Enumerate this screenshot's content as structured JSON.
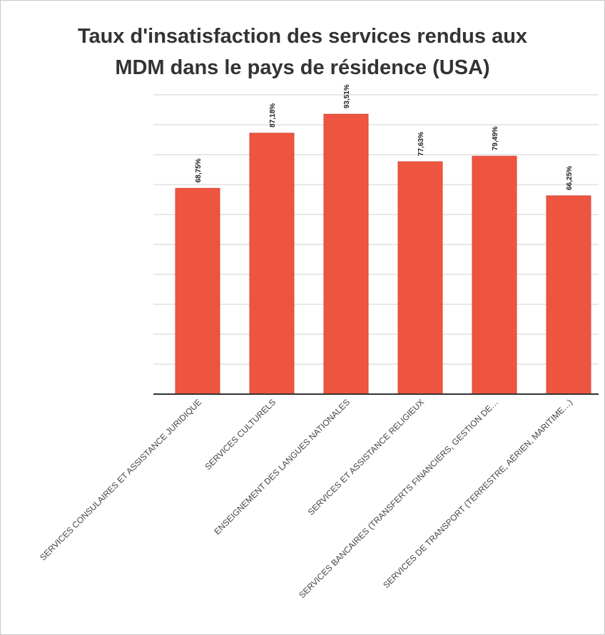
{
  "chart_data": {
    "type": "bar",
    "title": "Taux d'insatisfaction des services rendus aux MDM dans le pays de résidence (USA)",
    "categories": [
      "SERVICES CONSULAIRES ET ASSISTANCE JURIDIQUE",
      "SERVICES CULTURELS",
      "ENSEIGNEMENT DES LANGUES NATIONALES",
      "SERVICES ET ASSISTANCE RELIGIEUX",
      "SERVICES BANCAIRES (TRANSFERTS FINANCIERS, GESTION DE…",
      "SERVICES DE TRANSPORT (TERRESTRE, AÉRIEN, MARITIME…)"
    ],
    "values": [
      68.75,
      87.18,
      93.51,
      77.63,
      79.49,
      66.25
    ],
    "value_labels": [
      "68,75%",
      "87,18%",
      "93,51%",
      "77,63%",
      "79,49%",
      "66,25%"
    ],
    "color": "#ee5540",
    "ylim": [
      0,
      100
    ],
    "yticks": [
      0,
      10,
      20,
      30,
      40,
      50,
      60,
      70,
      80,
      90,
      100
    ],
    "grid": true
  }
}
